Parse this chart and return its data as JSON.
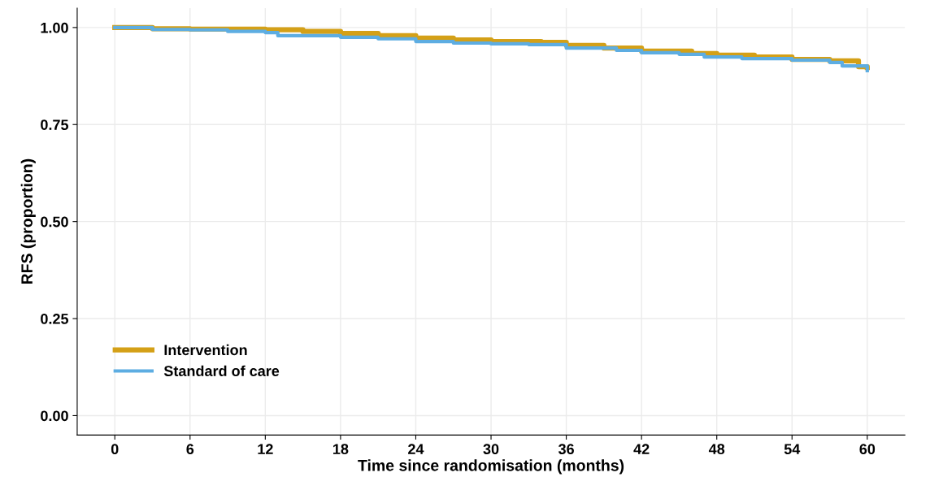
{
  "chart_data": {
    "type": "step",
    "xlabel": "Time since randomisation (months)",
    "ylabel": "RFS (proportion)",
    "xlim": [
      -3,
      63
    ],
    "xticks": [
      0,
      6,
      12,
      18,
      24,
      30,
      36,
      42,
      48,
      54,
      60
    ],
    "ylim": [
      -0.05,
      1.05
    ],
    "yticks": [
      {
        "value": 0,
        "label": "0.00"
      },
      {
        "value": 0.25,
        "label": "0.25"
      },
      {
        "value": 0.5,
        "label": "0.50"
      },
      {
        "value": 0.75,
        "label": "0.75"
      },
      {
        "value": 1,
        "label": "1.00"
      }
    ],
    "grid": true,
    "legend": "bottom left",
    "series": [
      {
        "name": "Intervention",
        "color": "#d4a017",
        "x": [
          0,
          3,
          6,
          12,
          15,
          18,
          21,
          24,
          27,
          30,
          34,
          36,
          39,
          42,
          45,
          46,
          48,
          51,
          54,
          57,
          59.3,
          60
        ],
        "values": [
          1.0,
          0.997,
          0.996,
          0.994,
          0.99,
          0.985,
          0.979,
          0.973,
          0.968,
          0.964,
          0.962,
          0.954,
          0.947,
          0.939,
          0.939,
          0.933,
          0.929,
          0.924,
          0.918,
          0.914,
          0.899,
          0.897
        ]
      },
      {
        "name": "Standard of care",
        "color": "#5dade2",
        "x": [
          0,
          3,
          6,
          9,
          12,
          13,
          18,
          21,
          24,
          27,
          30,
          33,
          36,
          40,
          42,
          45,
          47,
          50,
          54,
          57,
          58,
          60
        ],
        "values": [
          1.0,
          0.995,
          0.994,
          0.99,
          0.987,
          0.979,
          0.975,
          0.971,
          0.964,
          0.96,
          0.958,
          0.956,
          0.947,
          0.941,
          0.935,
          0.931,
          0.924,
          0.92,
          0.916,
          0.91,
          0.901,
          0.889
        ]
      }
    ]
  }
}
